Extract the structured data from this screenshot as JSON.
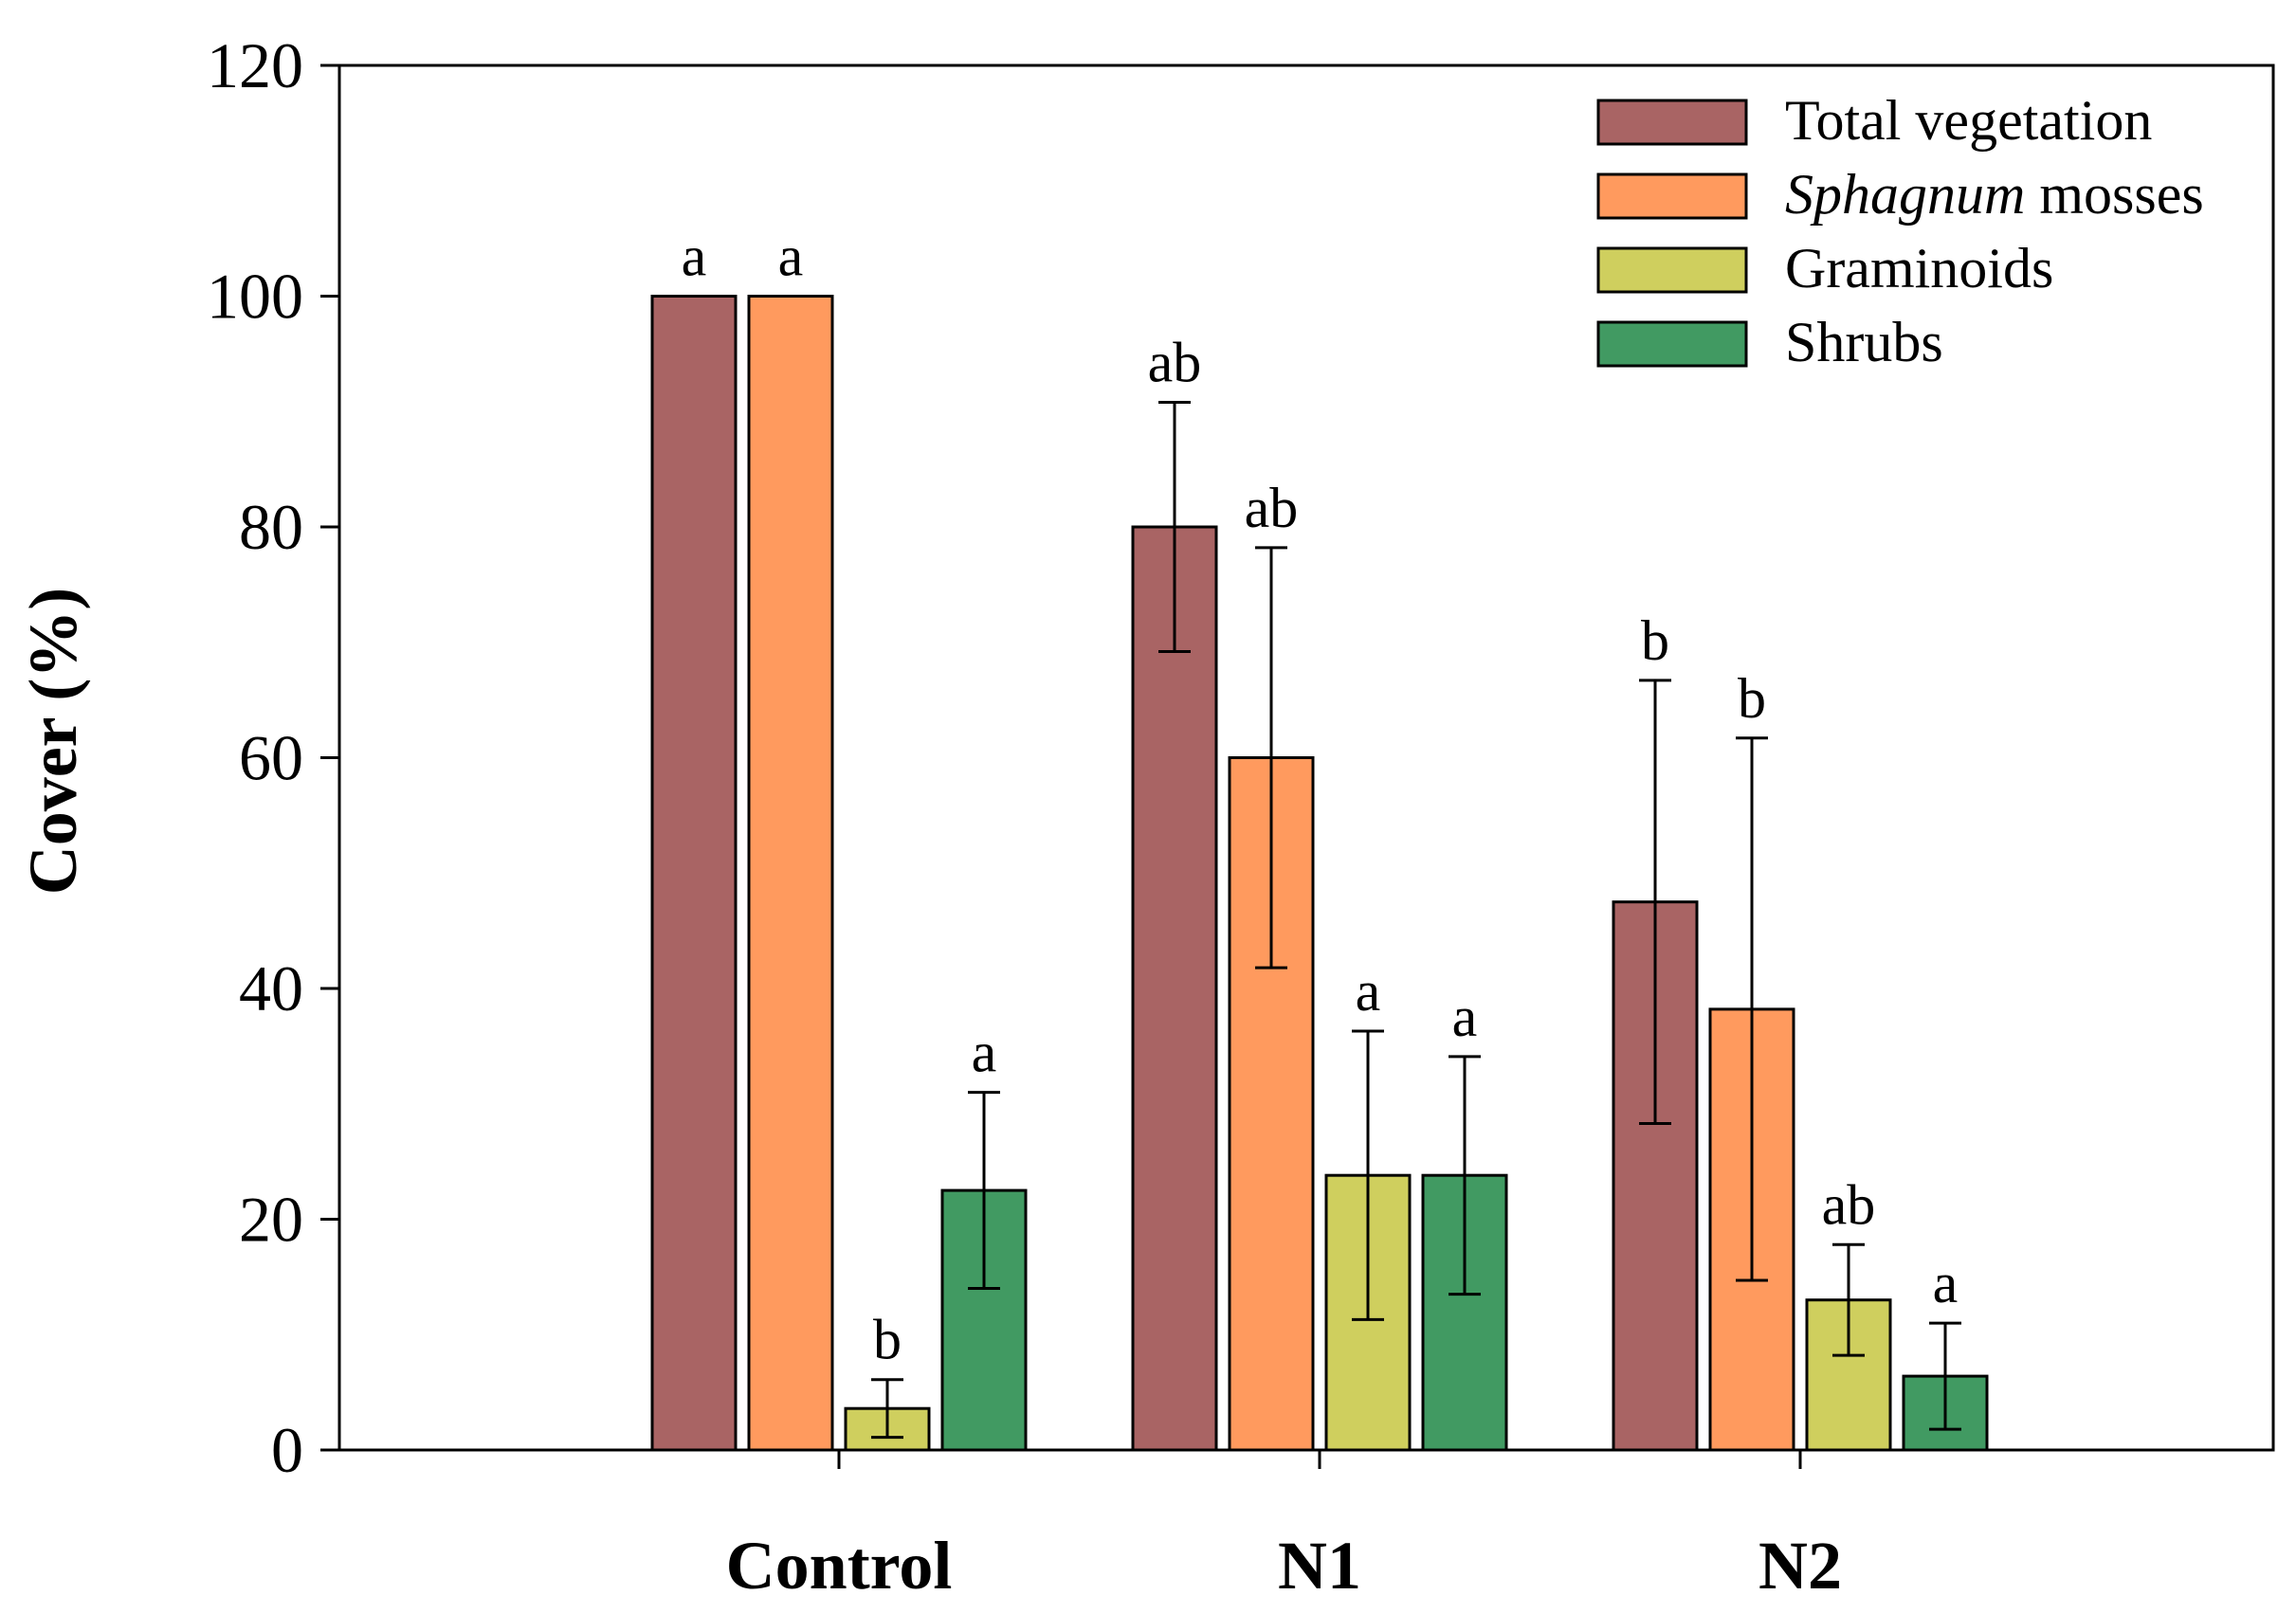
{
  "chart_data": {
    "type": "bar",
    "title": "",
    "xlabel": "",
    "ylabel": "Cover (%)",
    "ylim": [
      0,
      120
    ],
    "yticks": [
      0,
      20,
      40,
      60,
      80,
      100,
      120
    ],
    "categories": [
      "Control",
      "N1",
      "N2"
    ],
    "legend_position": "top-right",
    "series": [
      {
        "name": "Total vegetation",
        "name_parts": [
          {
            "text": "Total vegetation",
            "italic": false
          }
        ],
        "color": "#A96464",
        "values": [
          100,
          80,
          47.5
        ],
        "errors": [
          null,
          10.8,
          19.2
        ],
        "letters": [
          "a",
          "ab",
          "b"
        ]
      },
      {
        "name": "Sphagnum mosses",
        "name_parts": [
          {
            "text": "Sphagnum",
            "italic": true
          },
          {
            "text": " mosses",
            "italic": false
          }
        ],
        "color": "#FF9A5E",
        "values": [
          100,
          60,
          38.2
        ],
        "errors": [
          null,
          18.2,
          23.5
        ],
        "letters": [
          "a",
          "ab",
          "b"
        ]
      },
      {
        "name": "Graminoids",
        "name_parts": [
          {
            "text": "Graminoids",
            "italic": false
          }
        ],
        "color": "#CFCF5E",
        "values": [
          3.6,
          23.8,
          13
        ],
        "errors": [
          2.5,
          12.5,
          4.8
        ],
        "letters": [
          "b",
          "a",
          "ab"
        ]
      },
      {
        "name": "Shrubs",
        "name_parts": [
          {
            "text": "Shrubs",
            "italic": false
          }
        ],
        "color": "#419A62",
        "values": [
          22.5,
          23.8,
          6.4
        ],
        "errors": [
          8.5,
          10.3,
          4.6
        ],
        "letters": [
          "a",
          "a",
          "a"
        ]
      }
    ]
  }
}
